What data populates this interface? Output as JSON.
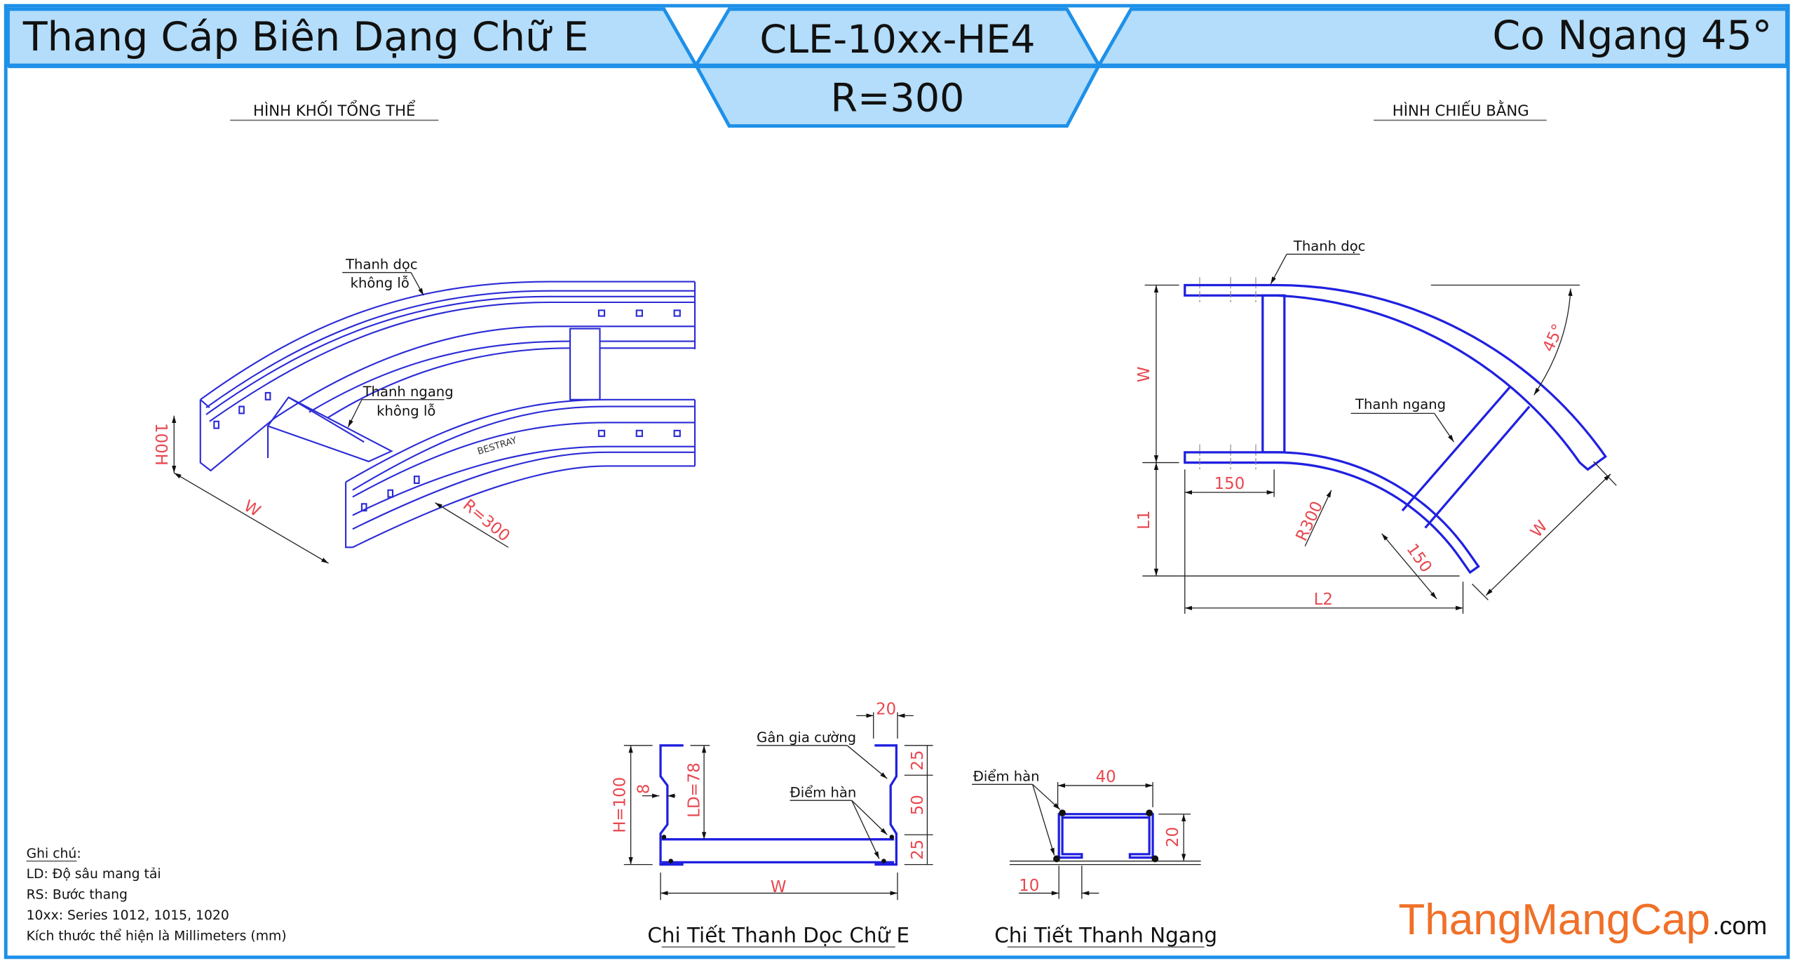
{
  "header": {
    "left_title": "Thang Cáp Biên Dạng Chữ E",
    "code": "CLE-10xx-HE4",
    "radius": "R=300",
    "right_title": "Co Ngang 45°"
  },
  "colors": {
    "frame": "#1e90e8",
    "header_fill": "#b3ddfa",
    "part_line": "#2b2bd6",
    "dimension_text": "#e8474f",
    "brand_orange": "#f07028"
  },
  "iso_view": {
    "title": "HÌNH KHỐI TỔNG THỂ",
    "label_rail_1": "Thanh dọc",
    "label_rail_2": "không lỗ",
    "label_rung_1": "Thanh ngang",
    "label_rung_2": "không lỗ",
    "brand_stamp": "BESTRAY",
    "dim_height": "100H",
    "dim_width": "W",
    "dim_radius": "R=300"
  },
  "plan_view": {
    "title": "HÌNH CHIẾU BẰNG",
    "label_rail": "Thanh dọc",
    "label_rung": "Thanh ngang",
    "dim_w_vertical": "W",
    "dim_l1": "L1",
    "dim_150_horizontal": "150",
    "dim_l2": "L2",
    "dim_radius": "R300",
    "dim_angle": "45°",
    "dim_150_diagonal": "150",
    "dim_w_diagonal": "W"
  },
  "side_rail_detail": {
    "title": "Chi Tiết Thanh Dọc Chữ E",
    "label_rib": "Gân gia cường",
    "label_weld": "Điểm hàn",
    "dim_h": "H=100",
    "dim_ld": "LD=78",
    "dim_8": "8",
    "dim_20": "20",
    "dim_25_top": "25",
    "dim_50": "50",
    "dim_25_bottom": "25",
    "dim_w": "W"
  },
  "rung_detail": {
    "title": "Chi Tiết Thanh Ngang",
    "label_weld": "Điểm hàn",
    "dim_40": "40",
    "dim_20": "20",
    "dim_10": "10"
  },
  "notes": {
    "heading": "Ghi chú:",
    "lines": [
      "LD: Độ sâu mang tải",
      "RS: Bước thang",
      "10xx: Series 1012, 1015, 1020",
      "Kích thước thể hiện là Millimeters (mm)"
    ]
  },
  "brand": {
    "name": "ThangMangCap",
    "suffix": ".com"
  }
}
